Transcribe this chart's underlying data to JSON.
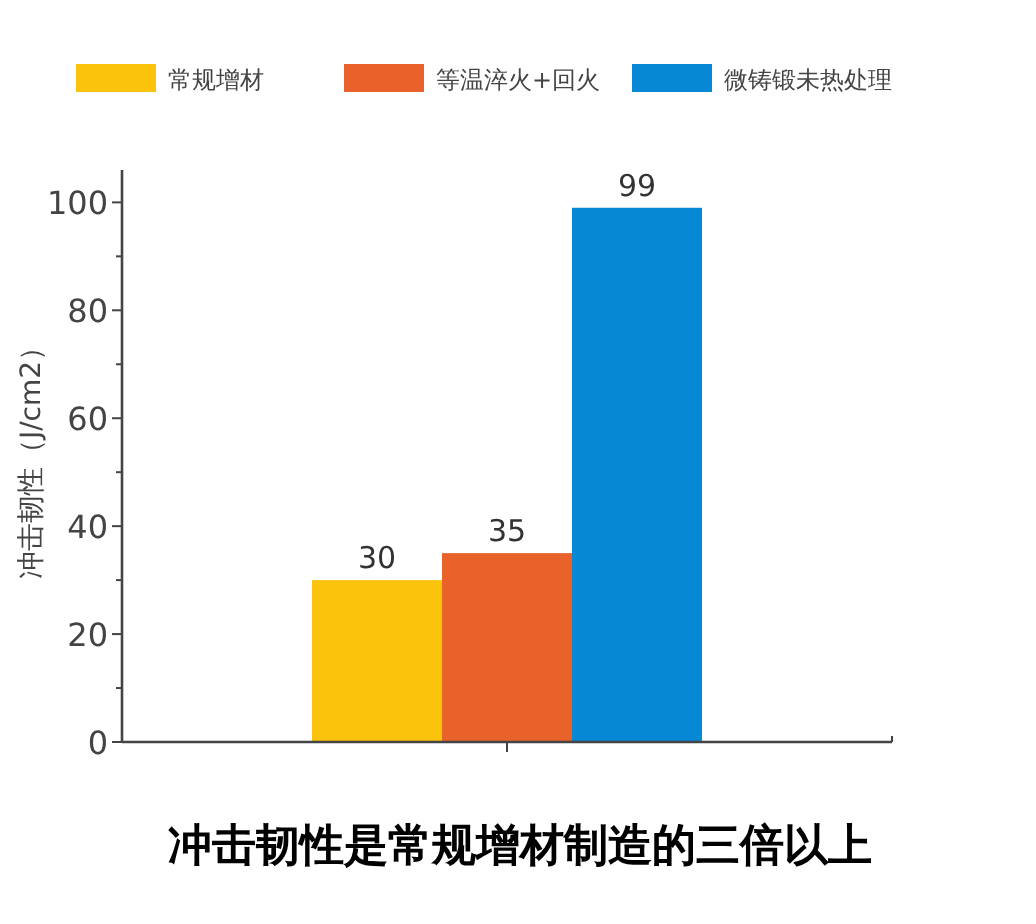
{
  "chart_data": {
    "type": "bar",
    "title": "冲击韧性是常规增材制造的三倍以上",
    "ylabel": "冲击韧性（J/cm2）",
    "categories": [
      null
    ],
    "series": [
      {
        "name": "常规增材",
        "color": "#fcc30c",
        "values": [
          30
        ]
      },
      {
        "name": "等温淬火+回火",
        "color": "#e8622a",
        "values": [
          35
        ]
      },
      {
        "name": "微铸锻未热处理",
        "color": "#0788d4",
        "values": [
          99
        ]
      }
    ],
    "ylim": [
      0,
      106
    ],
    "yticks": [
      0,
      {
        "value": 10,
        "label": null
      },
      20,
      {
        "value": 30,
        "label": null
      },
      40,
      {
        "value": 50,
        "label": null
      },
      60,
      {
        "value": 70,
        "label": null
      },
      80,
      {
        "value": 90,
        "label": null
      },
      100
    ],
    "data_labels": true,
    "legend": "top",
    "grid": false
  }
}
